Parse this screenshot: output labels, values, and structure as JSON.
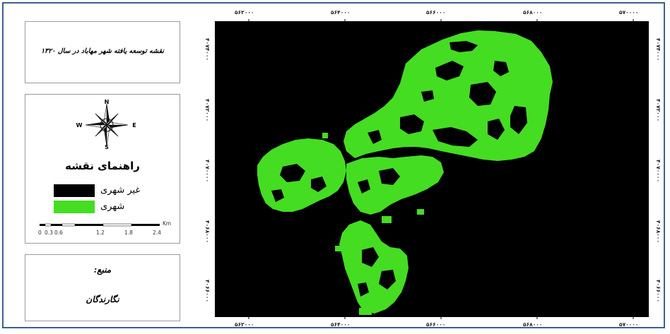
{
  "map": {
    "title": "نقشه توسعه یافته شهر مهاباد در سال ۱۳۲۰",
    "legend_title": "راهنمای نقشه",
    "legend_items": [
      {
        "label": "غیر شهری",
        "color": "#000000"
      },
      {
        "label": "شهری",
        "color": "#44dd22"
      }
    ],
    "compass_labels": {
      "n": "N",
      "s": "S",
      "e": "E",
      "w": "W"
    },
    "scale": {
      "unit": "Km",
      "ticks": [
        "0",
        "0.3",
        "0.6",
        "1.2",
        "1.8",
        "2.4"
      ]
    },
    "source": {
      "label": "منبع:",
      "value": "نگارندگان"
    },
    "x_ticks": [
      "۵۶۲۰۰۰",
      "۵۶۴۰۰۰",
      "۵۶۶۰۰۰",
      "۵۶۸۰۰۰",
      "۵۷۰۰۰۰"
    ],
    "y_ticks": [
      "۴۰۷۴۰۰۰",
      "۴۰۷۲۰۰۰",
      "۴۰۷۰۰۰۰",
      "۴۰۶۸۰۰۰",
      "۴۰۶۶۰۰۰"
    ],
    "colors": {
      "background": "#000000",
      "urban": "#44dd22",
      "frame": "#3f5f93"
    }
  }
}
